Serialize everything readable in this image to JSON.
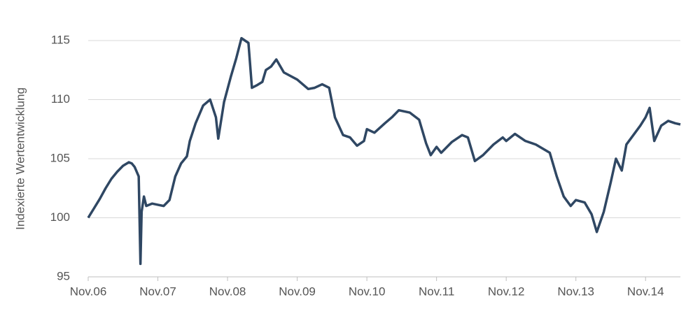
{
  "chart_data": {
    "type": "line",
    "y_label": "Indexierte Wertentwicklung",
    "x": [
      0,
      1,
      2,
      3,
      4,
      5,
      6,
      7,
      7.5,
      8,
      8.7,
      9,
      9.2,
      9.6,
      10,
      11,
      12,
      13,
      14,
      15,
      16,
      17,
      17.5,
      18.5,
      19.8,
      21,
      22,
      22.4,
      23.4,
      24.6,
      25.5,
      26.4,
      27.6,
      28.2,
      29,
      30,
      30.6,
      31.5,
      32.4,
      33.7,
      36,
      37.9,
      39,
      40.3,
      41.5,
      42.5,
      43.9,
      45.1,
      46.3,
      47.5,
      48,
      49.3,
      51.1,
      52.3,
      53.5,
      55.4,
      57,
      58.2,
      59,
      60,
      60.8,
      62.6,
      64.4,
      65.4,
      66.6,
      68,
      69.8,
      71.4,
      72,
      73.5,
      75.3,
      77.1,
      79.5,
      80.7,
      81.9,
      83.1,
      84,
      85.5,
      86.7,
      87.6,
      88.8,
      90,
      90.9,
      91.9,
      92.7,
      93.9,
      95.1,
      96,
      96.7,
      97.5,
      98.7,
      99.9,
      101.1,
      102
    ],
    "values": [
      100.0,
      100.8,
      101.6,
      102.5,
      103.3,
      103.9,
      104.4,
      104.7,
      104.6,
      104.3,
      103.5,
      96.1,
      100.5,
      101.8,
      101.0,
      101.2,
      101.1,
      101.0,
      101.5,
      103.5,
      104.6,
      105.2,
      106.5,
      108.0,
      109.5,
      110.0,
      108.5,
      106.7,
      109.8,
      112.0,
      113.5,
      115.2,
      114.8,
      111.0,
      111.2,
      111.5,
      112.5,
      112.8,
      113.4,
      112.3,
      111.7,
      110.9,
      111.0,
      111.3,
      111.0,
      108.5,
      107.0,
      106.8,
      106.1,
      106.5,
      107.5,
      107.2,
      108.0,
      108.5,
      109.1,
      108.9,
      108.3,
      106.3,
      105.3,
      106.0,
      105.5,
      106.4,
      107.0,
      106.8,
      104.8,
      105.3,
      106.2,
      106.8,
      106.5,
      107.1,
      106.5,
      106.2,
      105.5,
      103.5,
      101.8,
      101.0,
      101.5,
      101.3,
      100.3,
      98.8,
      100.5,
      103.0,
      105.0,
      104.0,
      106.2,
      107.0,
      107.8,
      108.5,
      109.3,
      106.5,
      107.8,
      108.2,
      108.0,
      107.9
    ],
    "color": "#2f4763",
    "xlim": [
      0,
      102
    ],
    "xticks": [
      {
        "value": 0,
        "label": "Nov.06"
      },
      {
        "value": 12,
        "label": "Nov.07"
      },
      {
        "value": 24,
        "label": "Nov.08"
      },
      {
        "value": 36,
        "label": "Nov.09"
      },
      {
        "value": 48,
        "label": "Nov.10"
      },
      {
        "value": 60,
        "label": "Nov.11"
      },
      {
        "value": 72,
        "label": "Nov.12"
      },
      {
        "value": 84,
        "label": "Nov.13"
      },
      {
        "value": 96,
        "label": "Nov.14"
      }
    ],
    "ylim": [
      95,
      115
    ],
    "yticks": [
      95,
      100,
      105,
      110,
      115
    ],
    "grid": true
  }
}
